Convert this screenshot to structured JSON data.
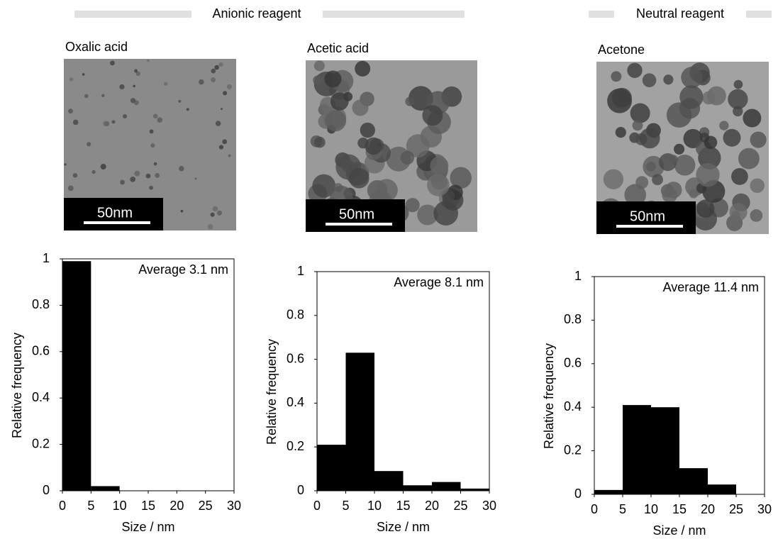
{
  "headers": [
    "Anionic reagent",
    "Neutral reagent"
  ],
  "images": [
    {
      "label": "Oxalic acid",
      "scale_bar": "50nm"
    },
    {
      "label": "Acetic acid",
      "scale_bar": "50nm"
    },
    {
      "label": "Acetone",
      "scale_bar": "50nm"
    }
  ],
  "chart_data": [
    {
      "type": "histogram",
      "annotation": "Average 3.1 nm",
      "xlabel": "Size / nm",
      "ylabel": "Relative frequency",
      "bins": [
        0,
        5,
        10,
        15,
        20,
        25,
        30
      ],
      "values": [
        0.99,
        0.02,
        0,
        0,
        0,
        0
      ],
      "color": "#000000",
      "xlim": [
        0,
        30
      ],
      "ylim": [
        0,
        1
      ],
      "xticks": [
        0,
        5,
        10,
        15,
        20,
        25,
        30
      ],
      "yticks": [
        0,
        0.2,
        0.4,
        0.6,
        0.8,
        1
      ]
    },
    {
      "type": "histogram",
      "annotation": "Average 8.1 nm",
      "xlabel": "Size / nm",
      "ylabel": "Relative frequency",
      "bins": [
        0,
        5,
        10,
        15,
        20,
        25,
        30
      ],
      "values": [
        0.21,
        0.63,
        0.09,
        0.025,
        0.04,
        0.01
      ],
      "color": "#000000",
      "xlim": [
        0,
        30
      ],
      "ylim": [
        0,
        1
      ],
      "xticks": [
        0,
        5,
        10,
        15,
        20,
        25,
        30
      ],
      "yticks": [
        0,
        0.2,
        0.4,
        0.6,
        0.8,
        1
      ]
    },
    {
      "type": "histogram",
      "annotation": "Average 11.4 nm",
      "xlabel": "Size / nm",
      "ylabel": "Relative frequency",
      "bins": [
        0,
        5,
        10,
        15,
        20,
        25,
        30
      ],
      "values": [
        0.02,
        0.41,
        0.4,
        0.12,
        0.045,
        0
      ],
      "color": "#000000",
      "xlim": [
        0,
        30
      ],
      "ylim": [
        0,
        1
      ],
      "xticks": [
        0,
        5,
        10,
        15,
        20,
        25,
        30
      ],
      "yticks": [
        0,
        0.2,
        0.4,
        0.6,
        0.8,
        1
      ]
    }
  ]
}
